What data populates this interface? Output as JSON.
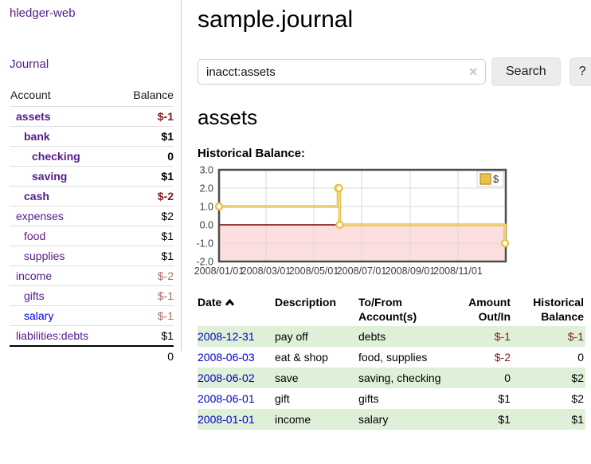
{
  "app": {
    "brand": "hledger-web",
    "nav_journal": "Journal"
  },
  "sidebar": {
    "table_headers": {
      "account": "Account",
      "balance": "Balance"
    },
    "accounts": [
      {
        "name": "assets",
        "indent": 1,
        "bold": true,
        "balance": "$-1",
        "visited": true
      },
      {
        "name": "bank",
        "indent": 2,
        "bold": true,
        "balance": "$1",
        "visited": true
      },
      {
        "name": "checking",
        "indent": 3,
        "bold": true,
        "balance": "0",
        "visited": true
      },
      {
        "name": "saving",
        "indent": 3,
        "bold": true,
        "balance": "$1",
        "visited": true
      },
      {
        "name": "cash",
        "indent": 2,
        "bold": true,
        "balance": "$-2",
        "visited": true
      },
      {
        "name": "expenses",
        "indent": 1,
        "bold": false,
        "balance": "$2",
        "visited": true
      },
      {
        "name": "food",
        "indent": 2,
        "bold": false,
        "balance": "$1",
        "visited": true
      },
      {
        "name": "supplies",
        "indent": 2,
        "bold": false,
        "balance": "$1",
        "visited": true
      },
      {
        "name": "income",
        "indent": 1,
        "bold": false,
        "balance": "$-2",
        "visited": true
      },
      {
        "name": "gifts",
        "indent": 2,
        "bold": false,
        "balance": "$-1",
        "visited": true
      },
      {
        "name": "salary",
        "indent": 2,
        "bold": false,
        "balance": "$-1",
        "visited": false
      },
      {
        "name": "liabilities:debts",
        "indent": 1,
        "bold": false,
        "balance": "$1",
        "visited": true
      }
    ],
    "total": "0"
  },
  "header": {
    "title": "sample.journal"
  },
  "search": {
    "value": "inacct:assets",
    "clear_icon": "✕",
    "button": "Search",
    "help_button": "?"
  },
  "account_page": {
    "heading": "assets"
  },
  "chart_data": {
    "type": "line",
    "title": "Historical Balance:",
    "step": true,
    "series": [
      {
        "name": "$",
        "color": "#e9c24a",
        "points": [
          [
            "2008-01-01",
            1
          ],
          [
            "2008-06-01",
            2
          ],
          [
            "2008-06-02",
            2
          ],
          [
            "2008-06-03",
            0
          ],
          [
            "2008-12-31",
            -1
          ]
        ]
      }
    ],
    "xlim": [
      "2008-01-01",
      "2009-01-01"
    ],
    "ylim": [
      -2,
      3
    ],
    "y_ticks": [
      "3.0",
      "2.0",
      "1.0",
      "0.0",
      "-1.0",
      "-2.0"
    ],
    "x_ticks": [
      "2008/01/01",
      "2008/03/01",
      "2008/05/01",
      "2008/07/01",
      "2008/09/01",
      "2008/11/01"
    ],
    "legend_position": "top-right",
    "grid": true,
    "zero_line_color": "#8a1f1f",
    "negative_fill": "#fcdede",
    "border_color": "#4d4d4d"
  },
  "register": {
    "headers": {
      "date": "Date",
      "description": "Description",
      "account": "To/From Account(s)",
      "amount": "Amount Out/In",
      "balance": "Historical Balance"
    },
    "rows": [
      {
        "date": "2008-12-31",
        "description": "pay off",
        "accounts": "debts",
        "amount": "$-1",
        "balance": "$-1"
      },
      {
        "date": "2008-06-03",
        "description": "eat & shop",
        "accounts": "food, supplies",
        "amount": "$-2",
        "balance": "0"
      },
      {
        "date": "2008-06-02",
        "description": "save",
        "accounts": "saving, checking",
        "amount": "0",
        "balance": "$2"
      },
      {
        "date": "2008-06-01",
        "description": "gift",
        "accounts": "gifts",
        "amount": "$1",
        "balance": "$2"
      },
      {
        "date": "2008-01-01",
        "description": "income",
        "accounts": "salary",
        "amount": "$1",
        "balance": "$1"
      }
    ]
  },
  "colors": {
    "link_purple": "#551a8b",
    "link_blue": "#0000ee",
    "date_link_blue": "#0000cc",
    "negative_strong": "#7f1c1c",
    "negative_soft": "#b06a6a",
    "row_stripe_green": "#dff0d8",
    "series_gold": "#e9c24a",
    "zero_line_red": "#8a1f1f",
    "negative_region_pink": "#fcdede"
  }
}
